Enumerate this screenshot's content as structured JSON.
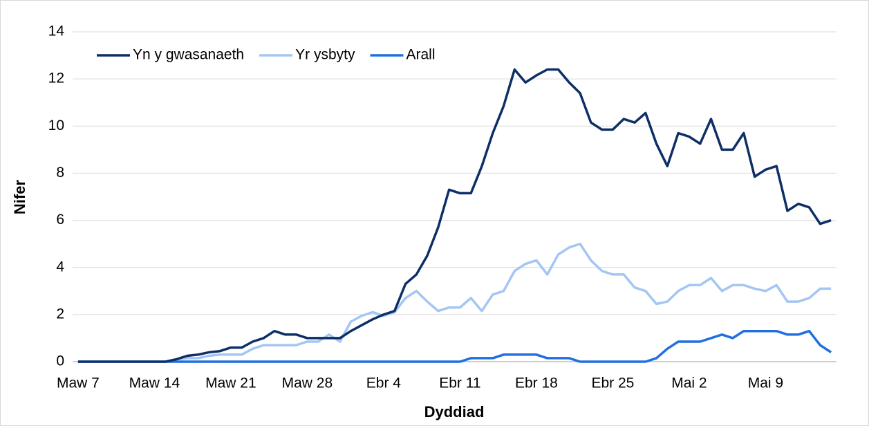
{
  "chart_data": {
    "type": "line",
    "x_label": "Dyddiad",
    "y_label": "Nifer",
    "categories": [
      "Maw 7",
      null,
      null,
      null,
      null,
      null,
      null,
      "Maw 14",
      null,
      null,
      null,
      null,
      null,
      null,
      "Maw 21",
      null,
      null,
      null,
      null,
      null,
      null,
      "Maw 28",
      null,
      null,
      null,
      null,
      null,
      null,
      "Ebr 4",
      null,
      null,
      null,
      null,
      null,
      null,
      "Ebr 11",
      null,
      null,
      null,
      null,
      null,
      null,
      "Ebr 18",
      null,
      null,
      null,
      null,
      null,
      null,
      "Ebr 25",
      null,
      null,
      null,
      null,
      null,
      null,
      "Mai 2",
      null,
      null,
      null,
      null,
      null,
      null,
      "Mai 9",
      null,
      null,
      null,
      null,
      null,
      null
    ],
    "series": [
      {
        "name": "Yn y gwasanaeth",
        "color": "#0d2f66",
        "values": [
          0,
          0,
          0,
          0,
          0,
          0,
          0,
          0,
          0,
          0.1,
          0.25,
          0.3,
          0.4,
          0.45,
          0.6,
          0.6,
          0.85,
          1.0,
          1.3,
          1.15,
          1.15,
          1.0,
          1.0,
          1.0,
          1.0,
          1.3,
          1.55,
          1.8,
          2.0,
          2.15,
          3.3,
          3.7,
          4.5,
          5.7,
          7.3,
          7.15,
          7.15,
          8.3,
          9.7,
          10.85,
          12.4,
          11.85,
          12.15,
          12.4,
          12.4,
          11.85,
          11.4,
          10.15,
          9.85,
          9.85,
          10.3,
          10.15,
          10.55,
          9.25,
          8.3,
          9.7,
          9.55,
          9.25,
          10.3,
          9.0,
          9.0,
          9.7,
          7.85,
          8.15,
          8.3,
          6.4,
          6.7,
          6.55,
          5.85,
          6.0
        ]
      },
      {
        "name": "Yr ysbyty",
        "color": "#a3c6f2",
        "values": [
          0,
          0,
          0,
          0,
          0,
          0,
          0,
          0,
          0,
          0.1,
          0.15,
          0.15,
          0.25,
          0.3,
          0.3,
          0.3,
          0.55,
          0.7,
          0.7,
          0.7,
          0.7,
          0.85,
          0.85,
          1.15,
          0.85,
          1.7,
          1.95,
          2.1,
          1.95,
          2.1,
          2.7,
          3.0,
          2.55,
          2.15,
          2.3,
          2.3,
          2.7,
          2.15,
          2.85,
          3.0,
          3.85,
          4.15,
          4.3,
          3.7,
          4.55,
          4.85,
          5.0,
          4.3,
          3.85,
          3.7,
          3.7,
          3.15,
          3.0,
          2.45,
          2.55,
          3.0,
          3.25,
          3.25,
          3.55,
          3.0,
          3.25,
          3.25,
          3.1,
          3.0,
          3.25,
          2.55,
          2.55,
          2.7,
          3.1,
          3.1
        ]
      },
      {
        "name": "Arall",
        "color": "#1f6fe0",
        "values": [
          0,
          0,
          0,
          0,
          0,
          0,
          0,
          0,
          0,
          0,
          0,
          0,
          0,
          0,
          0,
          0,
          0,
          0,
          0,
          0,
          0,
          0,
          0,
          0,
          0,
          0,
          0,
          0,
          0,
          0,
          0,
          0,
          0,
          0,
          0,
          0,
          0.15,
          0.15,
          0.15,
          0.3,
          0.3,
          0.3,
          0.3,
          0.15,
          0.15,
          0.15,
          0,
          0,
          0,
          0,
          0,
          0,
          0,
          0.15,
          0.55,
          0.85,
          0.85,
          0.85,
          1.0,
          1.15,
          1.0,
          1.3,
          1.3,
          1.3,
          1.3,
          1.15,
          1.15,
          1.3,
          0.7,
          0.4
        ]
      }
    ],
    "ylim": [
      0,
      14
    ],
    "yticks": [
      0,
      2,
      4,
      6,
      8,
      10,
      12,
      14
    ],
    "grid": true,
    "legend": "top-left"
  }
}
